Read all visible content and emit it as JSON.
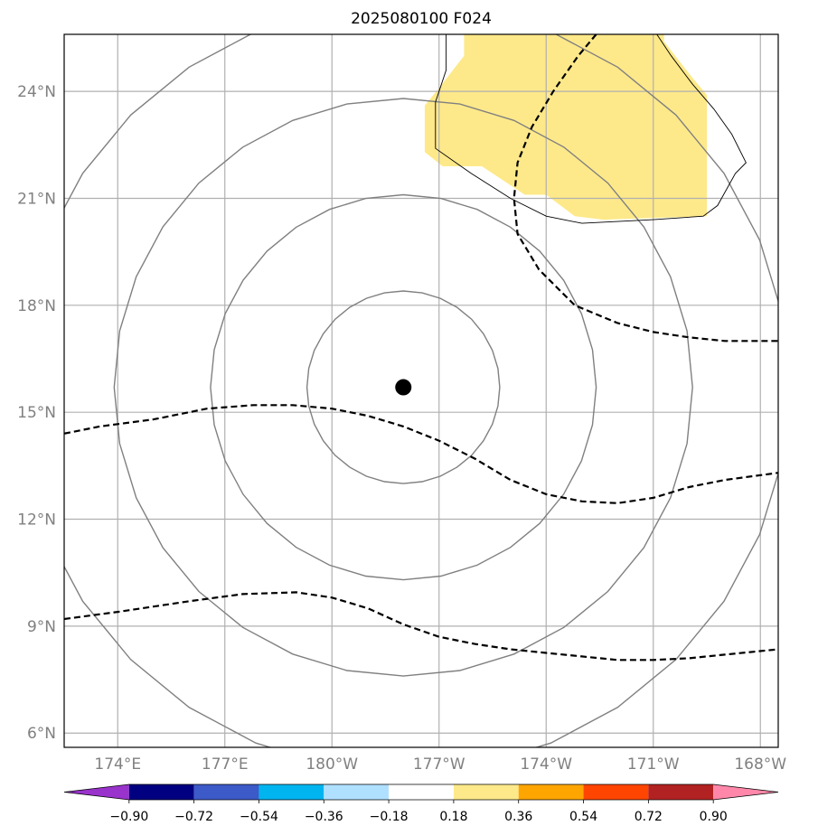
{
  "title": "2025080100 F024",
  "map": {
    "lon_range": [
      172.5,
      192.5
    ],
    "lat_range": [
      5.6,
      25.6
    ],
    "lat_ticks": [
      {
        "lat": 6,
        "label": "6°N"
      },
      {
        "lat": 9,
        "label": "9°N"
      },
      {
        "lat": 12,
        "label": "12°N"
      },
      {
        "lat": 15,
        "label": "15°N"
      },
      {
        "lat": 18,
        "label": "18°N"
      },
      {
        "lat": 21,
        "label": "21°N"
      },
      {
        "lat": 24,
        "label": "24°N"
      }
    ],
    "lon_ticks": [
      {
        "lon": 174,
        "label": "174°E"
      },
      {
        "lon": 177,
        "label": "177°E"
      },
      {
        "lon": 180,
        "label": "180°W"
      },
      {
        "lon": 183,
        "label": "177°W"
      },
      {
        "lon": 186,
        "label": "174°W"
      },
      {
        "lon": 189,
        "label": "171°W"
      },
      {
        "lon": 192,
        "label": "168°W"
      }
    ],
    "gridlines": true,
    "colors": {
      "gridline": "#b0b0b0",
      "circle": "#808080",
      "dashed": "#000000",
      "coast": "#000000",
      "shade": "#fee98a",
      "marker": "#000000"
    },
    "marker": {
      "lon": 182.0,
      "lat": 15.7
    },
    "range_circles_deg": [
      2.7,
      5.4,
      8.1,
      10.8
    ],
    "shaded_region": [
      [
        183.7,
        25.6
      ],
      [
        183.7,
        25.0
      ],
      [
        183.0,
        24.1
      ],
      [
        182.6,
        23.6
      ],
      [
        182.6,
        22.3
      ],
      [
        183.1,
        21.9
      ],
      [
        184.2,
        21.9
      ],
      [
        185.4,
        21.1
      ],
      [
        186.0,
        21.1
      ],
      [
        186.8,
        20.5
      ],
      [
        187.6,
        20.4
      ],
      [
        190.5,
        20.5
      ],
      [
        190.5,
        23.9
      ],
      [
        190.0,
        24.5
      ],
      [
        189.3,
        25.4
      ],
      [
        189.3,
        25.6
      ]
    ],
    "coastline": [
      [
        183.2,
        25.6
      ],
      [
        183.2,
        24.6
      ],
      [
        182.9,
        23.7
      ],
      [
        182.9,
        22.4
      ],
      [
        183.9,
        21.7
      ],
      [
        185.0,
        21.0
      ],
      [
        186.0,
        20.5
      ],
      [
        187.0,
        20.3
      ],
      [
        189.0,
        20.4
      ],
      [
        190.4,
        20.5
      ],
      [
        190.8,
        20.8
      ],
      [
        191.3,
        21.7
      ],
      [
        191.6,
        22.0
      ],
      [
        191.2,
        22.8
      ],
      [
        190.7,
        23.5
      ],
      [
        190.1,
        24.2
      ],
      [
        189.5,
        25.0
      ],
      [
        189.1,
        25.6
      ]
    ],
    "dashed_lines": [
      [
        [
          172.5,
          14.4
        ],
        [
          173.5,
          14.6
        ],
        [
          175.0,
          14.8
        ],
        [
          176.5,
          15.1
        ],
        [
          177.8,
          15.2
        ],
        [
          178.9,
          15.2
        ],
        [
          180.0,
          15.1
        ],
        [
          181.0,
          14.9
        ],
        [
          182.0,
          14.6
        ],
        [
          183.0,
          14.2
        ],
        [
          184.0,
          13.7
        ],
        [
          185.0,
          13.1
        ],
        [
          186.0,
          12.7
        ],
        [
          187.0,
          12.5
        ],
        [
          188.0,
          12.45
        ],
        [
          189.0,
          12.6
        ],
        [
          190.0,
          12.9
        ],
        [
          191.0,
          13.1
        ],
        [
          192.5,
          13.3
        ]
      ],
      [
        [
          172.5,
          9.2
        ],
        [
          174.0,
          9.4
        ],
        [
          176.0,
          9.7
        ],
        [
          177.5,
          9.9
        ],
        [
          179.0,
          9.95
        ],
        [
          180.0,
          9.8
        ],
        [
          181.0,
          9.5
        ],
        [
          182.0,
          9.05
        ],
        [
          183.0,
          8.7
        ],
        [
          184.0,
          8.5
        ],
        [
          185.0,
          8.35
        ],
        [
          186.0,
          8.25
        ],
        [
          187.0,
          8.15
        ],
        [
          188.0,
          8.05
        ],
        [
          189.0,
          8.05
        ],
        [
          190.0,
          8.1
        ],
        [
          191.0,
          8.2
        ],
        [
          192.5,
          8.35
        ]
      ],
      [
        [
          187.4,
          25.6
        ],
        [
          186.9,
          25.0
        ],
        [
          186.2,
          24.0
        ],
        [
          185.6,
          23.0
        ],
        [
          185.2,
          22.0
        ],
        [
          185.1,
          21.0
        ],
        [
          185.2,
          20.0
        ],
        [
          185.8,
          19.0
        ],
        [
          186.8,
          18.0
        ],
        [
          188.0,
          17.5
        ],
        [
          189.0,
          17.25
        ],
        [
          190.0,
          17.1
        ],
        [
          191.0,
          17.0
        ],
        [
          192.5,
          17.0
        ]
      ]
    ]
  },
  "colorbar": {
    "colors": [
      "#9933cc",
      "#000080",
      "#3c5ac8",
      "#00b4f0",
      "#b0e0ff",
      "#ffffff",
      "#fee98a",
      "#ffa500",
      "#ff4500",
      "#b22222",
      "#ff88aa"
    ],
    "levels": [
      -0.9,
      -0.72,
      -0.54,
      -0.36,
      -0.18,
      0.18,
      0.36,
      0.54,
      0.72,
      0.9
    ],
    "labels": [
      "−0.90",
      "−0.72",
      "−0.54",
      "−0.36",
      "−0.18",
      "0.18",
      "0.36",
      "0.54",
      "0.72",
      "0.90"
    ]
  }
}
